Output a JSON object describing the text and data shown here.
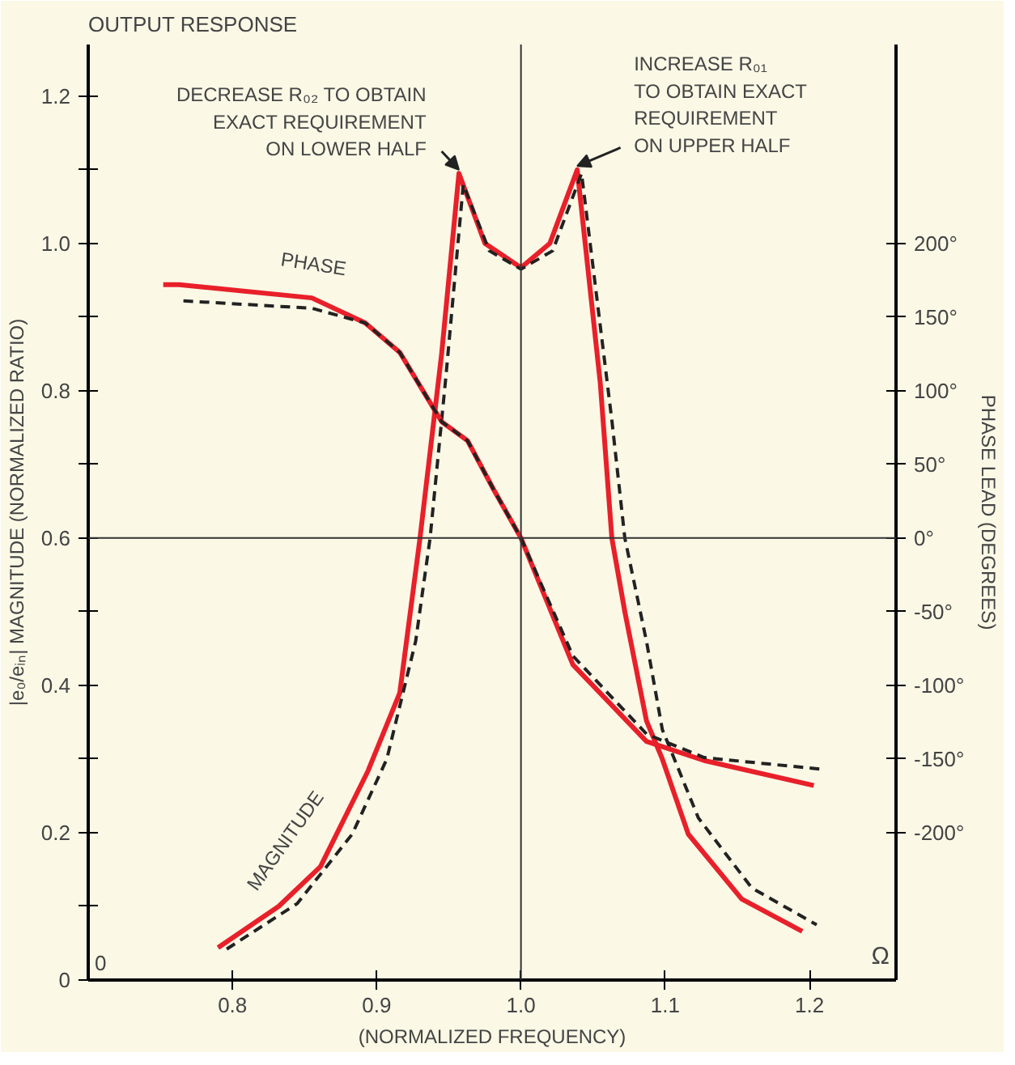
{
  "chart_data": {
    "type": "line",
    "title": "OUTPUT RESPONSE",
    "xlabel": "(NORMALIZED FREQUENCY)",
    "ylabel": "|e₀/eᵢₙ| MAGNITUDE (NORMALIZED RATIO)",
    "y2label": "PHASE LEAD (DEGREES)",
    "xlim": [
      0.7,
      1.26
    ],
    "xticks": [
      0.8,
      0.9,
      {
        "value": 1.0,
        "label": "1.0"
      },
      1.1,
      1.2
    ],
    "ylim": [
      0,
      1.27
    ],
    "yticks": [
      0,
      {
        "value": 0.1,
        "label": null
      },
      0.2,
      {
        "value": 0.3,
        "label": null
      },
      0.4,
      {
        "value": 0.5,
        "label": null
      },
      0.6,
      {
        "value": 0.7,
        "label": null
      },
      0.8,
      {
        "value": 0.9,
        "label": null
      },
      {
        "value": 1.0,
        "label": "1.0"
      },
      {
        "value": 1.1,
        "label": null
      },
      1.2
    ],
    "y2lim": [
      -300,
      335
    ],
    "y2ticks": [
      {
        "value": -200,
        "label": "-200°"
      },
      {
        "value": -150,
        "label": "-150°"
      },
      {
        "value": -100,
        "label": "-100°"
      },
      {
        "value": -50,
        "label": "-50°"
      },
      {
        "value": 0,
        "label": "0°"
      },
      {
        "value": 50,
        "label": "50°"
      },
      {
        "value": 100,
        "label": "100°"
      },
      {
        "value": 150,
        "label": "150°"
      },
      {
        "value": 200,
        "label": "200°"
      }
    ],
    "grid": false,
    "marker": "none",
    "ref_lines": [
      {
        "axis": "x",
        "value": 1.0,
        "color": "#333333"
      },
      {
        "axis": "y",
        "value": 0.6,
        "color": "#333333"
      }
    ],
    "annotations": [
      {
        "text": "DECREASE R₀₂ TO OBTAIN\nEXACT REQUIREMENT\nON LOWER HALF",
        "x": 0.957,
        "y": 1.095
      },
      {
        "text": "INCREASE R₀₁\nTO OBTAIN EXACT\nREQUIREMENT\nON UPPER HALF",
        "x": 1.039,
        "y": 1.1
      },
      "0",
      "Ω"
    ],
    "series": [
      {
        "name": "MAGNITUDE",
        "color": "#e8202a",
        "line_style": "solid",
        "x": [
          0.79,
          0.832,
          0.861,
          0.894,
          0.916,
          0.93,
          0.945,
          0.957,
          0.975,
          1.0,
          1.02,
          1.039,
          1.055,
          1.063,
          1.072,
          1.087,
          1.098,
          1.116,
          1.153,
          1.195
        ],
        "values": [
          0.044,
          0.1,
          0.154,
          0.284,
          0.39,
          0.6,
          0.85,
          1.095,
          1.0,
          0.967,
          1.0,
          1.1,
          0.81,
          0.6,
          0.5,
          0.352,
          0.3,
          0.198,
          0.11,
          0.066
        ]
      },
      {
        "color": "#222222",
        "line_style": "dashed",
        "x": [
          0.796,
          0.845,
          0.883,
          0.907,
          0.927,
          0.937,
          0.948,
          0.96,
          0.978,
          1.0,
          1.022,
          1.042,
          1.063,
          1.072,
          1.087,
          1.098,
          1.123,
          1.16,
          1.205
        ],
        "values": [
          0.042,
          0.104,
          0.198,
          0.3,
          0.46,
          0.6,
          0.82,
          1.08,
          0.99,
          0.965,
          0.99,
          1.095,
          0.76,
          0.6,
          0.46,
          0.34,
          0.22,
          0.125,
          0.075
        ]
      },
      {
        "name": "PHASE",
        "color": "#e8202a",
        "line_style": "solid",
        "axis": "y2",
        "x": [
          0.752,
          0.763,
          0.855,
          0.892,
          0.916,
          0.945,
          0.963,
          0.981,
          1.0,
          1.036,
          1.087,
          1.127,
          1.203
        ],
        "values": [
          172,
          172,
          163,
          146,
          126,
          79,
          66,
          33,
          0,
          -86,
          -138,
          -151,
          -168
        ]
      },
      {
        "color": "#222222",
        "line_style": "dashed",
        "axis": "y2",
        "x": [
          0.766,
          0.855,
          0.892,
          0.916,
          0.945,
          0.963,
          0.981,
          1.0,
          1.036,
          1.087,
          1.127,
          1.209
        ],
        "values": [
          161,
          156,
          146,
          126,
          79,
          66,
          33,
          0,
          -80,
          -133,
          -149,
          -157
        ]
      }
    ]
  }
}
